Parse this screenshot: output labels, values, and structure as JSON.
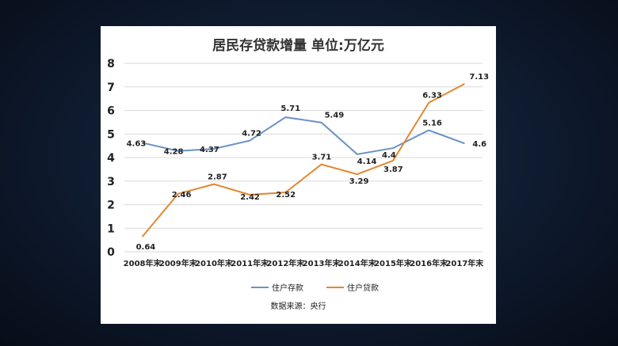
{
  "chart_data": {
    "type": "line",
    "title": "居民存贷款增量 单位:万亿元",
    "categories": [
      "2008年末",
      "2009年末",
      "2010年末",
      "2011年末",
      "2012年末",
      "2013年末",
      "2014年末",
      "2015年末",
      "2016年末",
      "2017年末"
    ],
    "series": [
      {
        "name": "住户存款",
        "color": "#6a93c4",
        "values": [
          4.63,
          4.28,
          4.37,
          4.72,
          5.71,
          5.49,
          4.14,
          4.4,
          5.16,
          4.6
        ]
      },
      {
        "name": "住户贷款",
        "color": "#e3872f",
        "values": [
          0.64,
          2.46,
          2.87,
          2.42,
          2.52,
          3.71,
          3.29,
          3.87,
          6.33,
          7.13
        ]
      }
    ],
    "yticks": [
      0,
      1,
      2,
      3,
      4,
      5,
      6,
      7,
      8
    ],
    "ylim": [
      0,
      8
    ],
    "grid": true,
    "legend_position": "bottom",
    "source": "数据来源：央行"
  }
}
